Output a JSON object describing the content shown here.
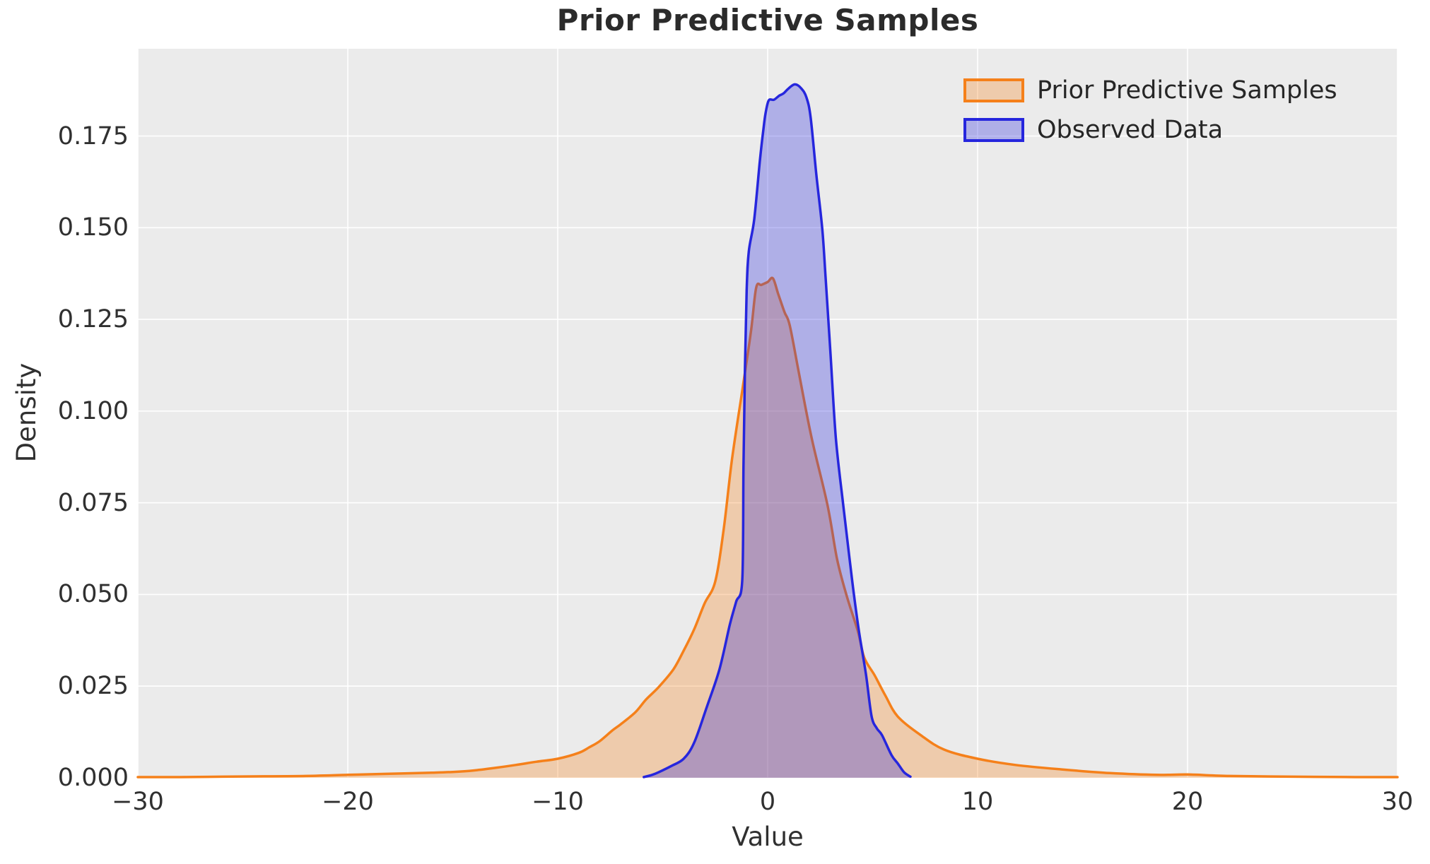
{
  "figure": {
    "title": "Prior Predictive Samples",
    "x_axis": {
      "label": "Value",
      "tick_labels": [
        "−30",
        "−20",
        "−10",
        "0",
        "10",
        "20",
        "30"
      ],
      "tick_values": [
        -30,
        -20,
        -10,
        0,
        10,
        20,
        30
      ]
    },
    "y_axis": {
      "label": "Density",
      "tick_labels": [
        "0.000",
        "0.025",
        "0.050",
        "0.075",
        "0.100",
        "0.125",
        "0.150",
        "0.175"
      ],
      "tick_values": [
        0,
        0.025,
        0.05,
        0.075,
        0.1,
        0.125,
        0.15,
        0.175
      ]
    },
    "legend": {
      "items": [
        {
          "label": "Prior Predictive Samples",
          "line_color": "#f5801a",
          "fill_color": "rgba(245,128,26,0.3)"
        },
        {
          "label": "Observed Data",
          "line_color": "#2626dd",
          "fill_color": "rgba(38,38,221,0.3)"
        }
      ]
    },
    "colors": {
      "plot_background": "#ebebeb",
      "grid": "#ffffff",
      "text": "#303030",
      "title": "#2b2b2b"
    }
  },
  "chart_data": {
    "type": "area",
    "subtype": "kde-density",
    "title": "Prior Predictive Samples",
    "xlabel": "Value",
    "ylabel": "Density",
    "xlim": [
      -30,
      30
    ],
    "ylim": [
      0,
      0.1988
    ],
    "grid": true,
    "legend_position": "upper right",
    "series": [
      {
        "name": "Prior Predictive Samples",
        "color": "#f5801a",
        "fill_opacity": 0.3,
        "peak": {
          "x": 0.25,
          "y": 0.136
        },
        "points": [
          [
            -30,
            0.0002
          ],
          [
            -28,
            0.0002
          ],
          [
            -26,
            0.0003
          ],
          [
            -24,
            0.0004
          ],
          [
            -22,
            0.0005
          ],
          [
            -20,
            0.0008
          ],
          [
            -18,
            0.0011
          ],
          [
            -16,
            0.0014
          ],
          [
            -15,
            0.0016
          ],
          [
            -14,
            0.002
          ],
          [
            -13,
            0.0027
          ],
          [
            -12,
            0.0035
          ],
          [
            -11,
            0.0044
          ],
          [
            -10,
            0.0052
          ],
          [
            -9,
            0.0068
          ],
          [
            -8.5,
            0.0083
          ],
          [
            -8,
            0.01
          ],
          [
            -7.4,
            0.0129
          ],
          [
            -7,
            0.0146
          ],
          [
            -6.3,
            0.0179
          ],
          [
            -5.8,
            0.0213
          ],
          [
            -5.2,
            0.0247
          ],
          [
            -4.5,
            0.0295
          ],
          [
            -4,
            0.0347
          ],
          [
            -3.5,
            0.0405
          ],
          [
            -3,
            0.0476
          ],
          [
            -2.5,
            0.0535
          ],
          [
            -2.1,
            0.0675
          ],
          [
            -1.7,
            0.0868
          ],
          [
            -1.2,
            0.106
          ],
          [
            -0.8,
            0.1215
          ],
          [
            -0.55,
            0.1336
          ],
          [
            -0.3,
            0.1344
          ],
          [
            0,
            0.1352
          ],
          [
            0.25,
            0.1362
          ],
          [
            0.5,
            0.132
          ],
          [
            0.8,
            0.127
          ],
          [
            1.05,
            0.1234
          ],
          [
            1.5,
            0.11
          ],
          [
            2.1,
            0.0925
          ],
          [
            2.85,
            0.0744
          ],
          [
            3.3,
            0.0598
          ],
          [
            3.75,
            0.0499
          ],
          [
            4.3,
            0.0399
          ],
          [
            4.6,
            0.0328
          ],
          [
            5.1,
            0.0279
          ],
          [
            5.6,
            0.0225
          ],
          [
            6.2,
            0.0167
          ],
          [
            7.3,
            0.0116
          ],
          [
            8.4,
            0.0077
          ],
          [
            10,
            0.0052
          ],
          [
            11.8,
            0.0035
          ],
          [
            14,
            0.0023
          ],
          [
            16.3,
            0.0013
          ],
          [
            18.5,
            0.0008
          ],
          [
            20,
            0.0009
          ],
          [
            22,
            0.0005
          ],
          [
            25,
            0.0003
          ],
          [
            28,
            0.0002
          ],
          [
            30,
            0.0002
          ]
        ]
      },
      {
        "name": "Observed Data",
        "color": "#2626dd",
        "fill_opacity": 0.3,
        "peak": {
          "x": 1.3,
          "y": 0.189
        },
        "points": [
          [
            -5.9,
            0.0002
          ],
          [
            -5.5,
            0.0008
          ],
          [
            -5.2,
            0.0015
          ],
          [
            -4.6,
            0.0032
          ],
          [
            -4,
            0.0052
          ],
          [
            -3.5,
            0.0096
          ],
          [
            -2.9,
            0.0193
          ],
          [
            -2.3,
            0.0295
          ],
          [
            -1.8,
            0.0418
          ],
          [
            -1.5,
            0.048
          ],
          [
            -1.21,
            0.054
          ],
          [
            -1.15,
            0.085
          ],
          [
            -1.08,
            0.112
          ],
          [
            -1.0,
            0.133
          ],
          [
            -0.9,
            0.1435
          ],
          [
            -0.64,
            0.1523
          ],
          [
            -0.37,
            0.1683
          ],
          [
            -0.2,
            0.177
          ],
          [
            -0.1,
            0.1812
          ],
          [
            0.05,
            0.1847
          ],
          [
            0.3,
            0.1849
          ],
          [
            0.55,
            0.186
          ],
          [
            0.75,
            0.1866
          ],
          [
            1.0,
            0.188
          ],
          [
            1.3,
            0.1891
          ],
          [
            1.6,
            0.188
          ],
          [
            1.85,
            0.1855
          ],
          [
            2.05,
            0.1799
          ],
          [
            2.32,
            0.1644
          ],
          [
            2.6,
            0.1498
          ],
          [
            2.76,
            0.1363
          ],
          [
            3.0,
            0.115
          ],
          [
            3.25,
            0.0925
          ],
          [
            3.6,
            0.0744
          ],
          [
            3.9,
            0.0598
          ],
          [
            4.11,
            0.0499
          ],
          [
            4.35,
            0.0399
          ],
          [
            4.68,
            0.0283
          ],
          [
            4.95,
            0.0168
          ],
          [
            5.2,
            0.0135
          ],
          [
            5.45,
            0.0116
          ],
          [
            5.9,
            0.0062
          ],
          [
            6.2,
            0.0039
          ],
          [
            6.5,
            0.0015
          ],
          [
            6.8,
            0.0003
          ]
        ]
      }
    ]
  }
}
